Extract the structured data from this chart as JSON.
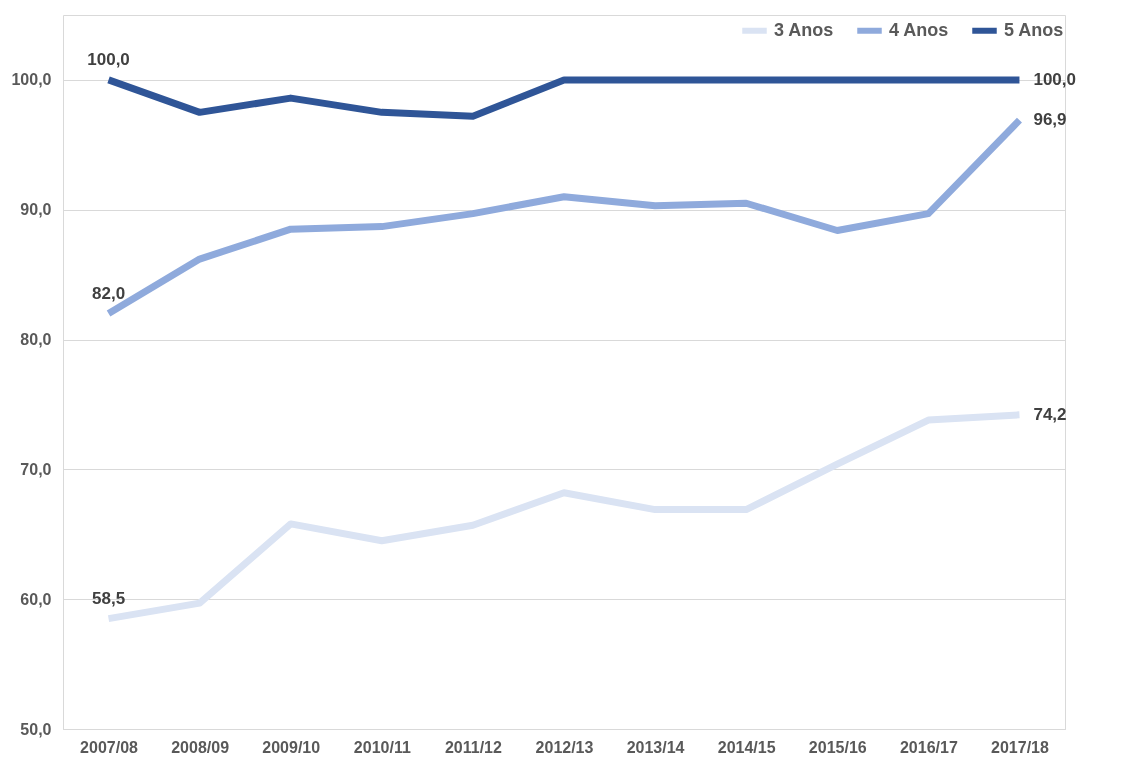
{
  "chart_data": {
    "type": "line",
    "categories": [
      "2007/08",
      "2008/09",
      "2009/10",
      "2010/11",
      "2011/12",
      "2012/13",
      "2013/14",
      "2014/15",
      "2015/16",
      "2016/17",
      "2017/18"
    ],
    "series": [
      {
        "name": "3 Anos",
        "color": "#dae3f3",
        "values": [
          58.5,
          59.7,
          65.8,
          64.5,
          65.7,
          68.2,
          66.9,
          66.9,
          70.4,
          73.8,
          74.2
        ],
        "value_labels": [
          "58,5",
          null,
          null,
          null,
          null,
          null,
          null,
          null,
          null,
          null,
          "74,2"
        ]
      },
      {
        "name": "4 Anos",
        "color": "#8faadc",
        "values": [
          82.0,
          86.2,
          88.5,
          88.7,
          89.7,
          91.0,
          90.3,
          90.5,
          88.4,
          89.7,
          96.9
        ],
        "value_labels": [
          "82,0",
          null,
          null,
          null,
          null,
          null,
          null,
          null,
          null,
          null,
          "96,9"
        ]
      },
      {
        "name": "5 Anos",
        "color": "#2f5597",
        "values": [
          100.0,
          97.5,
          98.6,
          97.5,
          97.2,
          100.0,
          100.0,
          100.0,
          100.0,
          100.0,
          100.0
        ],
        "value_labels": [
          "100,0",
          null,
          null,
          null,
          null,
          null,
          null,
          null,
          null,
          null,
          "100,0"
        ]
      }
    ],
    "ylim": [
      50,
      105
    ],
    "yticks": [
      {
        "value": 50,
        "label": "50,0"
      },
      {
        "value": 60,
        "label": "60,0"
      },
      {
        "value": 70,
        "label": "70,0"
      },
      {
        "value": 80,
        "label": "80,0"
      },
      {
        "value": 90,
        "label": "90,0"
      },
      {
        "value": 100,
        "label": "100,0"
      }
    ],
    "grid": "y",
    "legend": "top right",
    "marker": "none",
    "line_style": "solid"
  }
}
